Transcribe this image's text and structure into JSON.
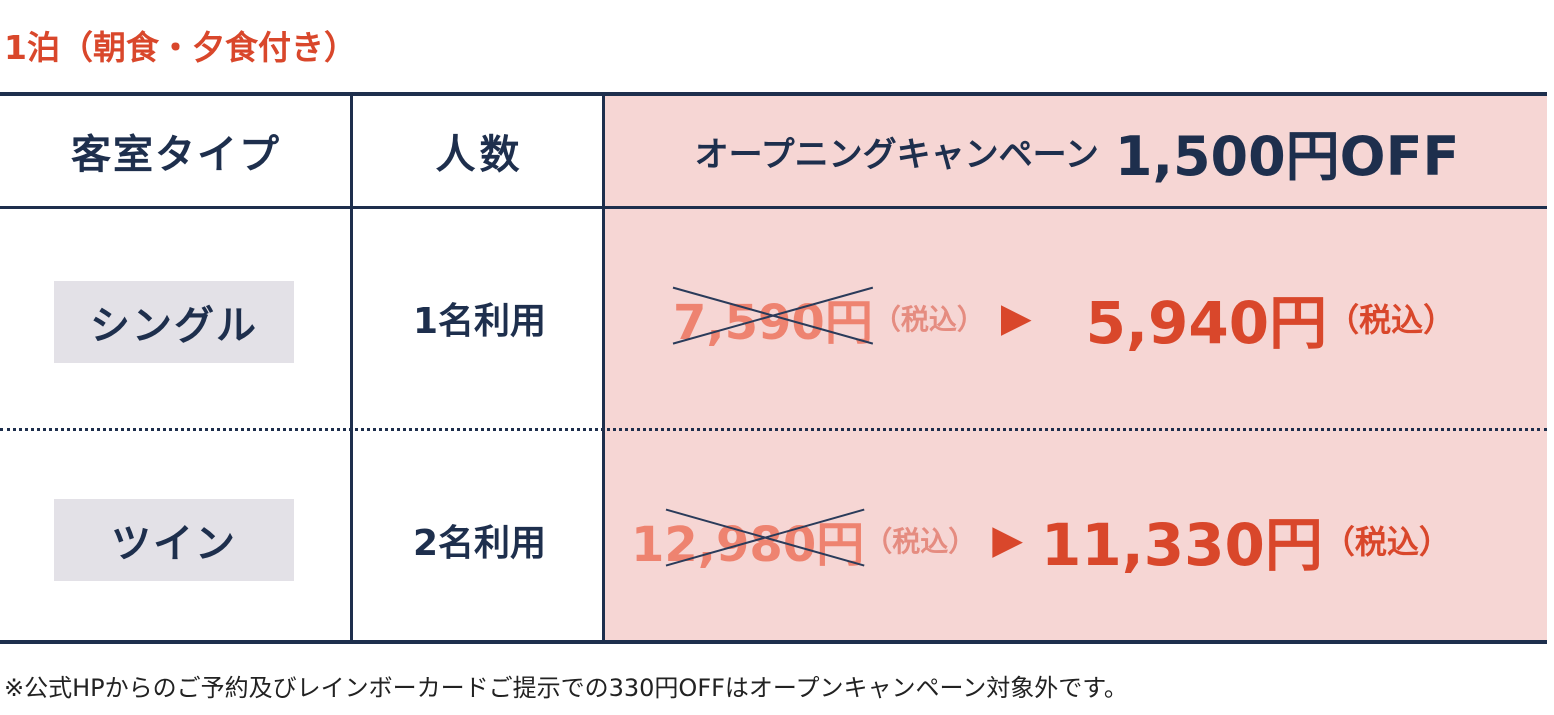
{
  "title": "1泊（朝食・夕食付き）",
  "headers": {
    "room_type": "客室タイプ",
    "people": "人数",
    "campaign": "オープニングキャンペーン",
    "discount": "1,500円OFF"
  },
  "rows": [
    {
      "room": "シングル",
      "people": "1名利用",
      "old_price": "7,590円",
      "old_tax": "（税込）",
      "arrow": "▶",
      "new_price": "5,940円",
      "new_tax": "（税込）"
    },
    {
      "room": "ツイン",
      "people": "2名利用",
      "old_price": "12,980円",
      "old_tax": "（税込）",
      "arrow": "▶",
      "new_price": "11,330円",
      "new_tax": "（税込）"
    }
  ],
  "note": "※公式HPからのご予約及びレインボーカードご提示での330円OFFはオープンキャンペーン対象外です。",
  "colors": {
    "accent": "#d9472b",
    "navy": "#1e2f4d",
    "pink": "#f6d6d4",
    "badge": "#e3e1e7"
  }
}
